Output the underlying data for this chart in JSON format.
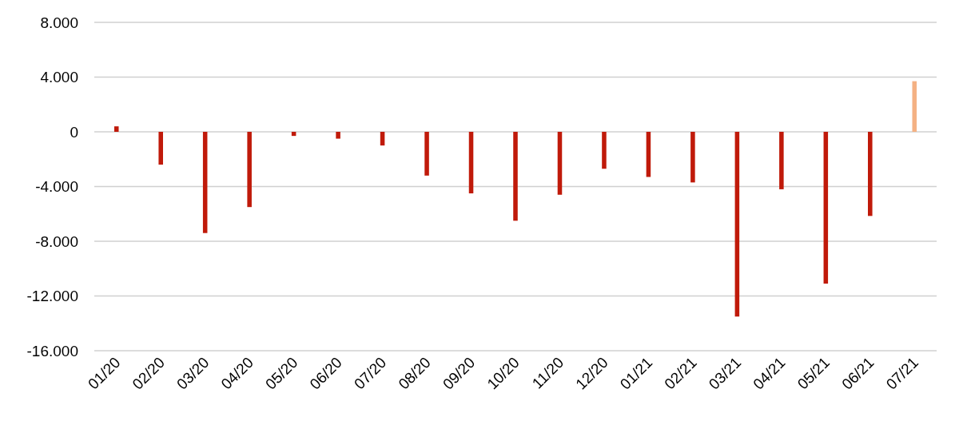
{
  "chart_data": {
    "type": "bar",
    "categories": [
      "01/20",
      "02/20",
      "03/20",
      "04/20",
      "05/20",
      "06/20",
      "07/20",
      "08/20",
      "09/20",
      "10/20",
      "11/20",
      "12/20",
      "01/21",
      "02/21",
      "03/21",
      "04/21",
      "05/21",
      "06/21",
      "07/21"
    ],
    "values": [
      400,
      -2400,
      -7400,
      -5500,
      -300,
      -500,
      -1000,
      -3200,
      -4500,
      -6500,
      -4600,
      -2700,
      -3300,
      -3700,
      -13500,
      -4200,
      -11100,
      -6150,
      3700
    ],
    "colors": [
      "#c01a0a",
      "#c01a0a",
      "#c01a0a",
      "#c01a0a",
      "#c01a0a",
      "#c01a0a",
      "#c01a0a",
      "#c01a0a",
      "#c01a0a",
      "#c01a0a",
      "#c01a0a",
      "#c01a0a",
      "#c01a0a",
      "#c01a0a",
      "#c01a0a",
      "#c01a0a",
      "#c01a0a",
      "#c01a0a",
      "#f4b183"
    ],
    "ylim": [
      -16000,
      8000
    ],
    "yticks": [
      {
        "value": -16000,
        "label": "-16.000"
      },
      {
        "value": -12000,
        "label": "-12.000"
      },
      {
        "value": -8000,
        "label": "-8.000"
      },
      {
        "value": -4000,
        "label": "-4.000"
      },
      0,
      {
        "value": 4000,
        "label": "4.000"
      },
      {
        "value": 8000,
        "label": "8.000"
      }
    ],
    "grid": "y",
    "legend": false
  }
}
